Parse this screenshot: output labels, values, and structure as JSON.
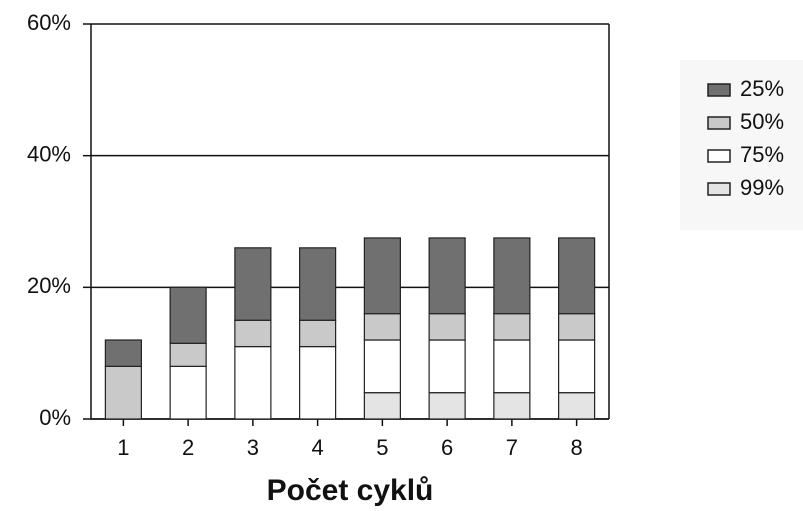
{
  "chart_data": {
    "type": "stacked-bar",
    "x_label": "Počet cyklů",
    "categories": [
      "1",
      "2",
      "3",
      "4",
      "5",
      "6",
      "7",
      "8"
    ],
    "series": [
      {
        "name": "99%",
        "color": "#e4e4e4",
        "values": [
          0,
          0,
          0,
          0,
          4,
          4,
          4,
          4
        ]
      },
      {
        "name": "75%",
        "color": "#ffffff",
        "values": [
          0,
          8,
          11,
          11,
          8,
          8,
          8,
          8
        ]
      },
      {
        "name": "50%",
        "color": "#c9c9c9",
        "values": [
          8,
          3.5,
          4,
          4,
          4,
          4,
          4,
          4
        ]
      },
      {
        "name": "25%",
        "color": "#707070",
        "values": [
          4,
          8.5,
          11,
          11,
          11.5,
          11.5,
          11.5,
          11.5
        ]
      }
    ],
    "ylim": [
      0,
      60
    ],
    "yticks": [
      {
        "value": 0,
        "label": "0%"
      },
      {
        "value": 20,
        "label": "20%"
      },
      {
        "value": 40,
        "label": "40%"
      },
      {
        "value": 60,
        "label": "60%"
      }
    ],
    "grid": true,
    "legend": "right"
  }
}
